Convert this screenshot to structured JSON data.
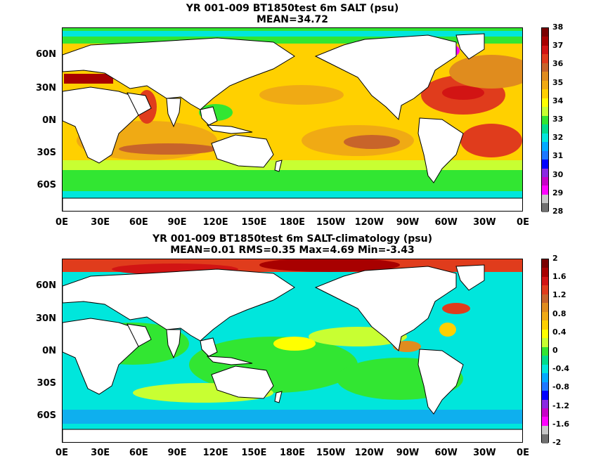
{
  "panels": [
    {
      "title_line1": "YR 001-009 BT1850test 6m SALT (psu)",
      "title_line2": "MEAN=34.72",
      "colorbar": {
        "labels": [
          "38",
          "37",
          "36",
          "35",
          "34",
          "33",
          "32",
          "31",
          "30",
          "29",
          "28"
        ],
        "colors": [
          "#7a0000",
          "#a80000",
          "#d21414",
          "#e03c1c",
          "#c8642a",
          "#e08c1e",
          "#f0aa14",
          "#ffd000",
          "#ffff00",
          "#c8ff32",
          "#32e632",
          "#00dc8c",
          "#00e6dc",
          "#00aaff",
          "#1e78ff",
          "#0000ff",
          "#8a2be2",
          "#c800c8",
          "#ff00ff",
          "#c8c8c8",
          "#707070"
        ]
      }
    },
    {
      "title_line1": "YR 001-009 BT1850test 6m SALT-climatology (psu)",
      "title_line2": "MEAN=0.01   RMS=0.35   Max=4.69   Min=-3.43",
      "colorbar": {
        "labels": [
          "2",
          "1.6",
          "1.2",
          "0.8",
          "0.4",
          "0",
          "-0.4",
          "-0.8",
          "-1.2",
          "-1.6",
          "-2"
        ],
        "colors": [
          "#7a0000",
          "#a80000",
          "#d21414",
          "#e03c1c",
          "#c8642a",
          "#e08c1e",
          "#f0aa14",
          "#ffd000",
          "#ffff00",
          "#c8ff32",
          "#32e632",
          "#00dc8c",
          "#00e6dc",
          "#00aaff",
          "#1e78ff",
          "#0000ff",
          "#8a2be2",
          "#c800c8",
          "#ff00ff",
          "#c8c8c8",
          "#707070"
        ]
      }
    }
  ],
  "y_ticks": [
    "60N",
    "30N",
    "0N",
    "30S",
    "60S"
  ],
  "x_ticks": [
    "0E",
    "30E",
    "60E",
    "90E",
    "120E",
    "150E",
    "180E",
    "150W",
    "120W",
    "90W",
    "60W",
    "30W",
    "0E"
  ]
}
